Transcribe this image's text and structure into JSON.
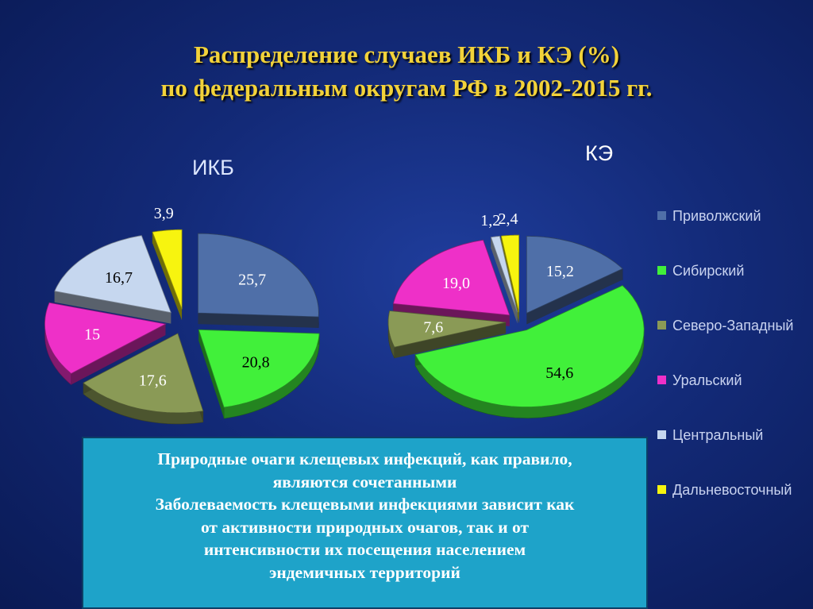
{
  "title": {
    "line1": "Распределение случаев ИКБ и КЭ  (%)",
    "line2": "по федеральным округам РФ в 2002-2015 гг."
  },
  "chart_data": [
    {
      "type": "pie",
      "title": "ИКБ",
      "categories": [
        "Приволжский",
        "Сибирский",
        "Северо-Западный",
        "Уральский",
        "Центральный",
        "Дальневосточный"
      ],
      "values": [
        25.7,
        20.8,
        17.6,
        15,
        16.7,
        3.9
      ],
      "labels": [
        "25,7",
        "20,8",
        "17,6",
        "15",
        "16,7",
        "3,9"
      ],
      "exploded": true
    },
    {
      "type": "pie",
      "title": "КЭ",
      "categories": [
        "Приволжский",
        "Сибирский",
        "Северо-Западный",
        "Уральский",
        "Центральный",
        "Дальневосточный"
      ],
      "values": [
        15.2,
        54.6,
        7.6,
        19.0,
        1.2,
        2.4
      ],
      "labels": [
        "15,2",
        "54,6",
        "7,6",
        "19,0",
        "1,2",
        "2,4"
      ],
      "exploded": true
    }
  ],
  "legend": {
    "position": "right",
    "items": [
      {
        "label": "Приволжский",
        "color": "#4f6fa8"
      },
      {
        "label": "Сибирский",
        "color": "#41f03a"
      },
      {
        "label": "Северо-Западный",
        "color": "#8a9a56"
      },
      {
        "label": "Уральский",
        "color": "#ee30c8"
      },
      {
        "label": "Центральный",
        "color": "#c6d7ef"
      },
      {
        "label": "Дальневосточный",
        "color": "#f7f40f"
      }
    ]
  },
  "textbox": {
    "lines": [
      "Природные очаги клещевых инфекций, как правило,",
      "являются сочетанными",
      "Заболеваемость клещевыми инфекциями зависит как",
      "от активности природных очагов, так и от",
      "интенсивности  их посещения населением",
      "эндемичных территорий"
    ]
  }
}
